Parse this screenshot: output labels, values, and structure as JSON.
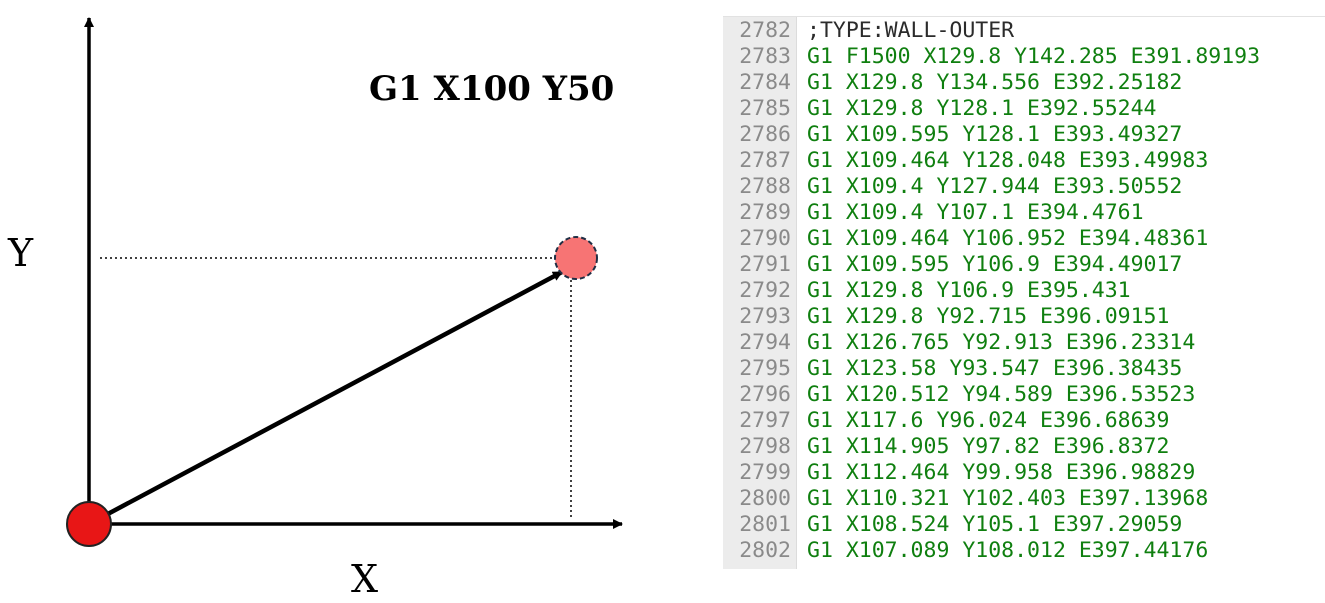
{
  "diagram": {
    "command_label": "G1 X100 Y50",
    "x_axis_label": "X",
    "y_axis_label": "Y",
    "colors": {
      "start_point": "#e81616",
      "target_point": "#f77474",
      "axes": "#000000"
    }
  },
  "code": {
    "lines": [
      {
        "number": "2782",
        "text": ";TYPE:WALL-OUTER",
        "kind": "comment"
      },
      {
        "number": "2783",
        "text": "G1 F1500 X129.8 Y142.285 E391.89193",
        "kind": "gcode"
      },
      {
        "number": "2784",
        "text": "G1 X129.8 Y134.556 E392.25182",
        "kind": "gcode"
      },
      {
        "number": "2785",
        "text": "G1 X129.8 Y128.1 E392.55244",
        "kind": "gcode"
      },
      {
        "number": "2786",
        "text": "G1 X109.595 Y128.1 E393.49327",
        "kind": "gcode"
      },
      {
        "number": "2787",
        "text": "G1 X109.464 Y128.048 E393.49983",
        "kind": "gcode"
      },
      {
        "number": "2788",
        "text": "G1 X109.4 Y127.944 E393.50552",
        "kind": "gcode"
      },
      {
        "number": "2789",
        "text": "G1 X109.4 Y107.1 E394.4761",
        "kind": "gcode"
      },
      {
        "number": "2790",
        "text": "G1 X109.464 Y106.952 E394.48361",
        "kind": "gcode"
      },
      {
        "number": "2791",
        "text": "G1 X109.595 Y106.9 E394.49017",
        "kind": "gcode"
      },
      {
        "number": "2792",
        "text": "G1 X129.8 Y106.9 E395.431",
        "kind": "gcode"
      },
      {
        "number": "2793",
        "text": "G1 X129.8 Y92.715 E396.09151",
        "kind": "gcode"
      },
      {
        "number": "2794",
        "text": "G1 X126.765 Y92.913 E396.23314",
        "kind": "gcode"
      },
      {
        "number": "2795",
        "text": "G1 X123.58 Y93.547 E396.38435",
        "kind": "gcode"
      },
      {
        "number": "2796",
        "text": "G1 X120.512 Y94.589 E396.53523",
        "kind": "gcode"
      },
      {
        "number": "2797",
        "text": "G1 X117.6 Y96.024 E396.68639",
        "kind": "gcode"
      },
      {
        "number": "2798",
        "text": "G1 X114.905 Y97.82 E396.8372",
        "kind": "gcode"
      },
      {
        "number": "2799",
        "text": "G1 X112.464 Y99.958 E396.98829",
        "kind": "gcode"
      },
      {
        "number": "2800",
        "text": "G1 X110.321 Y102.403 E397.13968",
        "kind": "gcode"
      },
      {
        "number": "2801",
        "text": "G1 X108.524 Y105.1 E397.29059",
        "kind": "gcode"
      },
      {
        "number": "2802",
        "text": "G1 X107.089 Y108.012 E397.44176",
        "kind": "gcode"
      }
    ]
  }
}
